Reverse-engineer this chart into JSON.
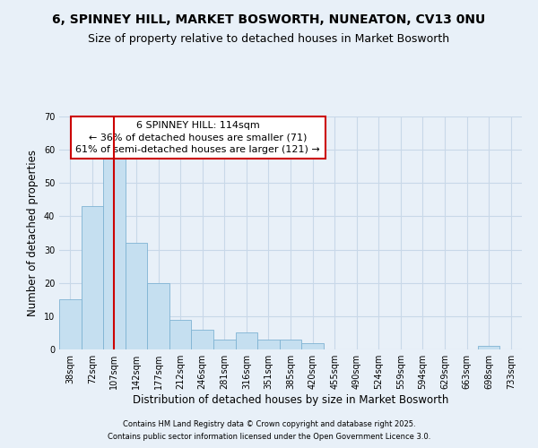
{
  "title1": "6, SPINNEY HILL, MARKET BOSWORTH, NUNEATON, CV13 0NU",
  "title2": "Size of property relative to detached houses in Market Bosworth",
  "xlabel": "Distribution of detached houses by size in Market Bosworth",
  "ylabel": "Number of detached properties",
  "categories": [
    "38sqm",
    "72sqm",
    "107sqm",
    "142sqm",
    "177sqm",
    "212sqm",
    "246sqm",
    "281sqm",
    "316sqm",
    "351sqm",
    "385sqm",
    "420sqm",
    "455sqm",
    "490sqm",
    "524sqm",
    "559sqm",
    "594sqm",
    "629sqm",
    "663sqm",
    "698sqm",
    "733sqm"
  ],
  "values": [
    15,
    43,
    58,
    32,
    20,
    9,
    6,
    3,
    5,
    3,
    3,
    2,
    0,
    0,
    0,
    0,
    0,
    0,
    0,
    1,
    0
  ],
  "bar_color": "#c5dff0",
  "bar_edge_color": "#7fb3d3",
  "grid_color": "#c8d8e8",
  "background_color": "#e8f0f8",
  "vline_x_index": 2,
  "vline_color": "#cc0000",
  "annotation_line1": "6 SPINNEY HILL: 114sqm",
  "annotation_line2": "← 36% of detached houses are smaller (71)",
  "annotation_line3": "61% of semi-detached houses are larger (121) →",
  "annotation_box_color": "#ffffff",
  "annotation_box_edge": "#cc0000",
  "ylim": [
    0,
    70
  ],
  "yticks": [
    0,
    10,
    20,
    30,
    40,
    50,
    60,
    70
  ],
  "footnote1": "Contains HM Land Registry data © Crown copyright and database right 2025.",
  "footnote2": "Contains public sector information licensed under the Open Government Licence 3.0.",
  "title_fontsize": 10,
  "subtitle_fontsize": 9,
  "tick_fontsize": 7,
  "ylabel_fontsize": 8.5,
  "xlabel_fontsize": 8.5,
  "annotation_fontsize": 8,
  "footnote_fontsize": 6
}
